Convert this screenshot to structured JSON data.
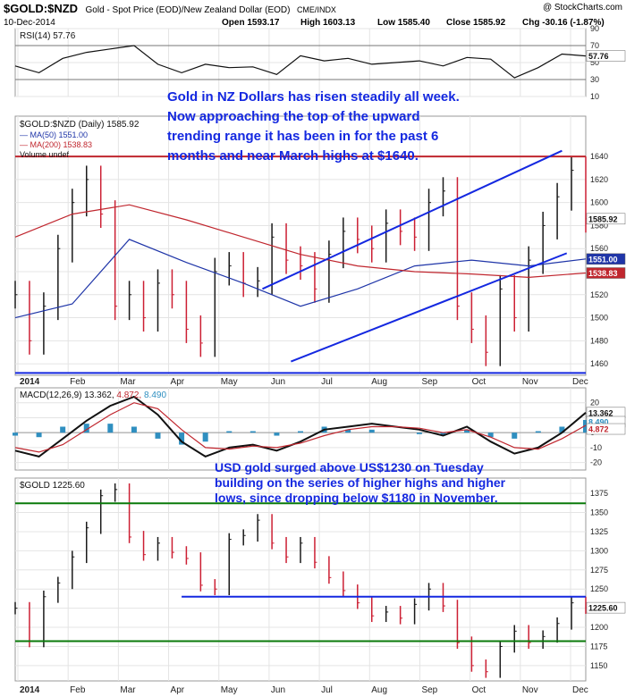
{
  "header": {
    "symbol": "$GOLD:$NZD",
    "description": "Gold - Spot Price (EOD)/New Zealand Dollar (EOD)",
    "source": "CME/INDX",
    "copyright": "@ StockCharts.com",
    "date": "10-Dec-2014",
    "open": "Open 1593.17",
    "high": "High 1603.13",
    "low": "Low 1585.40",
    "close": "Close 1585.92",
    "chg": "Chg -30.16 (-1.87%)"
  },
  "months": [
    "2014",
    "Feb",
    "Mar",
    "Apr",
    "May",
    "Jun",
    "Jul",
    "Aug",
    "Sep",
    "Oct",
    "Nov",
    "Dec"
  ],
  "colors": {
    "up": "#1a1a1a",
    "down": "#cc1f33",
    "ma50": "#1f35a8",
    "ma200": "#c0262e",
    "annotation": "#1428e0",
    "trend": "#1428e0",
    "support": "#0a7a0a",
    "macd_hist": "#2f8fc0"
  },
  "chart_data": [
    {
      "type": "line",
      "name": "rsi",
      "label": "RSI(14) 57.76",
      "last_value": "57.76",
      "ylim": [
        10,
        90
      ],
      "yticks": [
        "90",
        "70",
        "50",
        "30",
        "10"
      ],
      "levels": [
        70,
        30
      ],
      "x": [
        0,
        10,
        20,
        30,
        40,
        50,
        60,
        70,
        80,
        90,
        100,
        110,
        120,
        130,
        140,
        150,
        160,
        170,
        180,
        190,
        200,
        210,
        220,
        230,
        240
      ],
      "values": [
        46,
        38,
        55,
        62,
        66,
        70,
        48,
        38,
        48,
        44,
        45,
        36,
        58,
        52,
        55,
        48,
        50,
        52,
        46,
        56,
        54,
        32,
        44,
        60,
        57.76
      ]
    },
    {
      "type": "line",
      "name": "gold_nzd",
      "label": "$GOLD:$NZD (Daily) 1585.92",
      "ylim": [
        1450,
        1675
      ],
      "yticks": [
        "1640",
        "1620",
        "1600",
        "1580",
        "1560",
        "1540",
        "1520",
        "1500",
        "1480",
        "1460"
      ],
      "last_value": "1585.92",
      "x": [
        0,
        6,
        12,
        18,
        24,
        30,
        36,
        42,
        48,
        54,
        60,
        66,
        72,
        78,
        84,
        90,
        96,
        102,
        108,
        114,
        120,
        126,
        132,
        138,
        144,
        150,
        156,
        162,
        168,
        174,
        180,
        186,
        192,
        198,
        204,
        210,
        216,
        222,
        228,
        234,
        240
      ],
      "values": [
        1520,
        1480,
        1510,
        1560,
        1600,
        1620,
        1590,
        1510,
        1520,
        1500,
        1530,
        1520,
        1490,
        1478,
        1540,
        1545,
        1530,
        1532,
        1570,
        1550,
        1545,
        1525,
        1555,
        1575,
        1568,
        1560,
        1582,
        1575,
        1570,
        1600,
        1610,
        1510,
        1490,
        1470,
        1525,
        1500,
        1550,
        1580,
        1605,
        1628,
        1585.92
      ],
      "series": [
        {
          "name": "MA(50) 1551.00",
          "last_value": "1551.00",
          "x": [
            0,
            24,
            48,
            72,
            96,
            120,
            144,
            168,
            192,
            216,
            240
          ],
          "values": [
            1500,
            1512,
            1568,
            1548,
            1530,
            1510,
            1525,
            1545,
            1550,
            1545,
            1551
          ]
        },
        {
          "name": "MA(200) 1538.83",
          "last_value": "1538.83",
          "x": [
            0,
            24,
            48,
            72,
            96,
            120,
            144,
            168,
            192,
            216,
            240
          ],
          "values": [
            1570,
            1590,
            1598,
            1585,
            1570,
            1555,
            1545,
            1540,
            1538,
            1535,
            1538.83
          ]
        }
      ],
      "legend_extra": "Volume undef",
      "annotation_lines": [
        "Gold in NZ Dollars has risen steadily all week.",
        "Now approaching the top of the upward",
        "trending range it has been in for the past 6",
        "months and near March highs at $1640."
      ]
    },
    {
      "type": "line",
      "name": "macd",
      "label": "MACD(12,26,9)",
      "macd_value": "13.362",
      "signal_value": "4.872",
      "hist_value": "8.490",
      "axis_tags": [
        "13.362",
        "8.490",
        "4.872"
      ],
      "ylim": [
        -25,
        30
      ],
      "yticks": [
        "20",
        "10",
        "0",
        "-10",
        "-20"
      ],
      "x": [
        0,
        10,
        20,
        30,
        40,
        50,
        60,
        70,
        80,
        90,
        100,
        110,
        120,
        130,
        140,
        150,
        160,
        170,
        180,
        190,
        200,
        210,
        220,
        230,
        240
      ],
      "values": [
        -12,
        -16,
        -4,
        8,
        18,
        24,
        12,
        -6,
        -16,
        -10,
        -8,
        -12,
        -6,
        2,
        4,
        6,
        4,
        2,
        -2,
        4,
        -6,
        -14,
        -10,
        0,
        13.362
      ],
      "series": [
        {
          "name": "signal",
          "x": [
            0,
            10,
            20,
            30,
            40,
            50,
            60,
            70,
            80,
            90,
            100,
            110,
            120,
            130,
            140,
            150,
            160,
            170,
            180,
            190,
            200,
            210,
            220,
            230,
            240
          ],
          "values": [
            -10,
            -13,
            -8,
            2,
            12,
            20,
            16,
            2,
            -10,
            -11,
            -9,
            -10,
            -7,
            -2,
            2,
            4,
            4,
            3,
            0,
            2,
            -3,
            -10,
            -11,
            -4,
            4.872
          ]
        }
      ],
      "annotation_lines": [
        "USD gold surged above US$1230 on Tuesday",
        "building on the series of higher highs and higher",
        "lows, since dropping below $1180 in November."
      ]
    },
    {
      "type": "line",
      "name": "gold_usd",
      "label": "$GOLD 1225.60",
      "last_value": "1225.60",
      "ylim": [
        1130,
        1395
      ],
      "yticks": [
        "1375",
        "1350",
        "1325",
        "1300",
        "1275",
        "1250",
        "1225",
        "1200",
        "1175",
        "1150"
      ],
      "x": [
        0,
        6,
        12,
        18,
        24,
        30,
        36,
        42,
        48,
        54,
        60,
        66,
        72,
        78,
        84,
        90,
        96,
        102,
        108,
        114,
        120,
        126,
        132,
        138,
        144,
        150,
        156,
        162,
        168,
        174,
        180,
        186,
        192,
        198,
        204,
        210,
        216,
        222,
        228,
        234,
        240
      ],
      "values": [
        1225,
        1182,
        1240,
        1258,
        1292,
        1330,
        1372,
        1380,
        1318,
        1295,
        1310,
        1298,
        1290,
        1255,
        1250,
        1315,
        1320,
        1340,
        1310,
        1292,
        1310,
        1285,
        1265,
        1248,
        1232,
        1215,
        1220,
        1212,
        1230,
        1250,
        1228,
        1180,
        1150,
        1142,
        1175,
        1195,
        1180,
        1188,
        1205,
        1232,
        1225.6
      ],
      "levels": [
        1362,
        1182,
        1240
      ]
    }
  ]
}
